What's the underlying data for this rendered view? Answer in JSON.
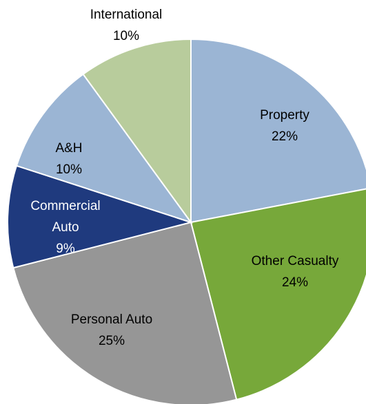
{
  "chart_data": {
    "type": "pie",
    "categories": [
      "Property",
      "Other Casualty",
      "Personal Auto",
      "Commercial Auto",
      "A&H",
      "International"
    ],
    "values": [
      22,
      24,
      25,
      9,
      10,
      10
    ],
    "value_labels": [
      "22%",
      "24%",
      "25%",
      "9%",
      "10%",
      "10%"
    ],
    "colors": [
      "#9bb5d4",
      "#77a83a",
      "#969696",
      "#1f3a7e",
      "#9bb5d4",
      "#b8cc9c"
    ]
  }
}
